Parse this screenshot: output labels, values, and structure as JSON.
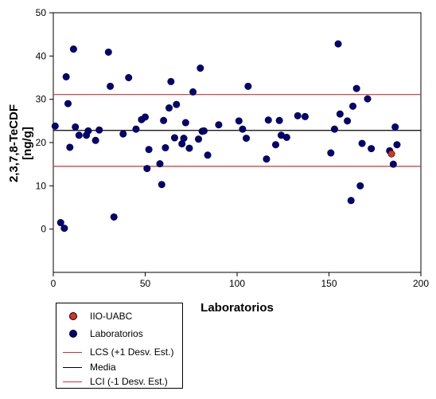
{
  "chart_data": {
    "type": "scatter",
    "title": "",
    "xlabel": "Laboratorios",
    "ylabel": "2,3,7,8-TeCDF\n[ng/g]",
    "xlim": [
      0,
      200
    ],
    "ylim": [
      -10,
      50
    ],
    "xticks": [
      0,
      50,
      100,
      150,
      200
    ],
    "yticks": [
      0,
      10,
      20,
      30,
      40,
      50
    ],
    "grid": false,
    "legend_placement": "bottom-left, outside plot",
    "series": [
      {
        "name": "Laboratorios",
        "color": "#000080",
        "points": [
          [
            1,
            23.8
          ],
          [
            4,
            1.5
          ],
          [
            6,
            0.2
          ],
          [
            7,
            35.2
          ],
          [
            8,
            29.0
          ],
          [
            9,
            18.9
          ],
          [
            11,
            41.6
          ],
          [
            12,
            23.6
          ],
          [
            14,
            21.7
          ],
          [
            18,
            21.7
          ],
          [
            19,
            22.7
          ],
          [
            23,
            20.5
          ],
          [
            25,
            22.9
          ],
          [
            30,
            40.9
          ],
          [
            31,
            33.0
          ],
          [
            33,
            2.8
          ],
          [
            38,
            22.0
          ],
          [
            41,
            35.0
          ],
          [
            45,
            23.1
          ],
          [
            48,
            25.3
          ],
          [
            50,
            25.9
          ],
          [
            51,
            14.0
          ],
          [
            52,
            18.4
          ],
          [
            58,
            15.1
          ],
          [
            59,
            10.3
          ],
          [
            60,
            25.1
          ],
          [
            61,
            18.8
          ],
          [
            63,
            28.0
          ],
          [
            64,
            34.1
          ],
          [
            66,
            21.1
          ],
          [
            67,
            28.8
          ],
          [
            70,
            19.7
          ],
          [
            71,
            21.0
          ],
          [
            72,
            24.6
          ],
          [
            74,
            18.7
          ],
          [
            76,
            31.7
          ],
          [
            79,
            20.8
          ],
          [
            80,
            37.2
          ],
          [
            81,
            22.6
          ],
          [
            82,
            22.7
          ],
          [
            84,
            17.1
          ],
          [
            90,
            24.1
          ],
          [
            101,
            25.0
          ],
          [
            103,
            23.1
          ],
          [
            105,
            21.0
          ],
          [
            106,
            33.0
          ],
          [
            116,
            16.2
          ],
          [
            117,
            25.2
          ],
          [
            121,
            19.5
          ],
          [
            123,
            25.1
          ],
          [
            124,
            21.7
          ],
          [
            127,
            21.2
          ],
          [
            133,
            26.2
          ],
          [
            137,
            26.0
          ],
          [
            151,
            17.6
          ],
          [
            153,
            23.1
          ],
          [
            155,
            42.8
          ],
          [
            156,
            26.6
          ],
          [
            160,
            25.0
          ],
          [
            162,
            6.6
          ],
          [
            163,
            28.4
          ],
          [
            165,
            32.5
          ],
          [
            167,
            10.0
          ],
          [
            168,
            19.8
          ],
          [
            171,
            30.1
          ],
          [
            173,
            18.6
          ],
          [
            183,
            18.1
          ],
          [
            185,
            15.0
          ],
          [
            186,
            23.6
          ],
          [
            187,
            19.5
          ]
        ]
      },
      {
        "name": "IIO-UABC",
        "color": "#e03020",
        "points": [
          [
            184,
            17.4
          ]
        ]
      }
    ],
    "reference_lines": [
      {
        "name": "LCS (+1 Desv. Est.)",
        "y": 31.1,
        "color": "#cc3333"
      },
      {
        "name": "Media",
        "y": 22.8,
        "color": "#000000"
      },
      {
        "name": "LCI (-1 Desv. Est.)",
        "y": 14.5,
        "color": "#cc3333"
      }
    ]
  },
  "legend": {
    "items": [
      {
        "label": "IIO-UABC",
        "kind": "dot",
        "color": "#e03020"
      },
      {
        "label": "Laboratorios",
        "kind": "dot",
        "color": "#000080"
      },
      {
        "label": "LCS (+1 Desv. Est.)",
        "kind": "line",
        "color": "#cc3333"
      },
      {
        "label": "Media",
        "kind": "line",
        "color": "#000000"
      },
      {
        "label": "LCI (-1 Desv. Est.)",
        "kind": "line",
        "color": "#cc3333"
      }
    ]
  }
}
